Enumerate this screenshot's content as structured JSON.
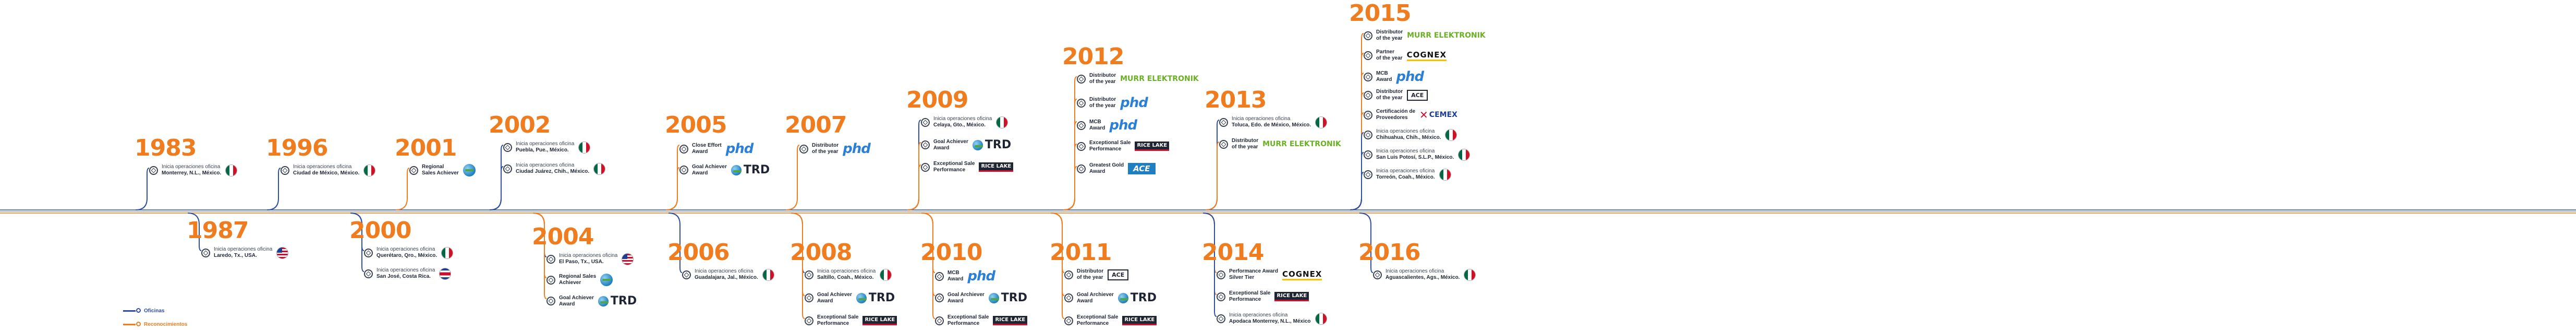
{
  "colors": {
    "orange": "#ef7d1f",
    "blue": "#2d4ea1",
    "navy": "#3b4250"
  },
  "legend": {
    "oficinas": "Oficinas",
    "reconocimientos": "Reconocimientos"
  },
  "groups": [
    {
      "year": "1983",
      "events": [
        {
          "l1": "Inicia operaciones oficina",
          "l2": "Monterrey, N.L., México.",
          "logo": "flag-mx"
        }
      ]
    },
    {
      "year": "1987",
      "events": [
        {
          "l1": "Inicia operaciones oficina",
          "l2": "Laredo, Tx., USA.",
          "logo": "flag-us"
        }
      ]
    },
    {
      "year": "1996",
      "events": [
        {
          "l1": "Inicia operaciones oficina",
          "l2": "Ciudad de México, México.",
          "logo": "flag-mx"
        }
      ]
    },
    {
      "year": "2000",
      "events": [
        {
          "l1": "Inicia operaciones oficina",
          "l2": "Querétaro, Qro., México.",
          "logo": "flag-mx"
        },
        {
          "l1": "Inicia operaciones oficina",
          "l2": "San José, Costa Rica.",
          "logo": "flag-cr"
        }
      ]
    },
    {
      "year": "2001",
      "events": [
        {
          "l1": "Regional",
          "l2": "Sales Achiever",
          "logo": "globe"
        }
      ]
    },
    {
      "year": "2002",
      "events": [
        {
          "l1": "Inicia operaciones oficina",
          "l2": "Puebla, Pue., México.",
          "logo": "flag-mx"
        },
        {
          "l1": "Inicia operaciones oficina",
          "l2": "Ciudad Juárez, Chih., México.",
          "logo": "flag-mx"
        }
      ]
    },
    {
      "year": "2004",
      "events": [
        {
          "l1": "Inicia operaciones oficina",
          "l2": "El Paso, Tx., USA.",
          "logo": "flag-us"
        },
        {
          "l1": "Regional Sales",
          "l2": "Achiever",
          "logo": "globe"
        },
        {
          "l1": "Goal Achiever",
          "l2": "Award",
          "logo": "trd"
        }
      ]
    },
    {
      "year": "2005",
      "events": [
        {
          "l1": "Close Effort",
          "l2": "Award",
          "logo": "phd"
        },
        {
          "l1": "Goal Achiever",
          "l2": "Award",
          "logo": "trd"
        }
      ]
    },
    {
      "year": "2006",
      "events": [
        {
          "l1": "Inicia operaciones oficina",
          "l2": "Guadalajara, Jal., México.",
          "logo": "flag-mx"
        }
      ]
    },
    {
      "year": "2007",
      "events": [
        {
          "l1": "Distributor",
          "l2": "of the year",
          "logo": "phd"
        }
      ]
    },
    {
      "year": "2008",
      "events": [
        {
          "l1": "Inicia operaciones oficina",
          "l2": "Saltillo, Coah., México.",
          "logo": "flag-mx"
        },
        {
          "l1": "Goal Achiever",
          "l2": "Award",
          "logo": "trd"
        },
        {
          "l1": "Exceptional Sale",
          "l2": "Performance",
          "logo": "rl"
        }
      ]
    },
    {
      "year": "2009",
      "events": [
        {
          "l1": "Inicia operaciones oficina",
          "l2": "Celaya, Gto., México.",
          "logo": "flag-mx"
        },
        {
          "l1": "Goal Achiever",
          "l2": "Award",
          "logo": "trd"
        },
        {
          "l1": "Exceptional Sale",
          "l2": "Performance",
          "logo": "rl"
        }
      ]
    },
    {
      "year": "2010",
      "events": [
        {
          "l1": "MCB",
          "l2": "Award",
          "logo": "phd"
        },
        {
          "l1": "Goal Archiever",
          "l2": "Award",
          "logo": "trd"
        },
        {
          "l1": "Exceptional Sale",
          "l2": "Performance",
          "logo": "rl"
        }
      ]
    },
    {
      "year": "2011",
      "events": [
        {
          "l1": "Distributor",
          "l2": "of the year",
          "logo": "ace2"
        },
        {
          "l1": "Goal Archiever",
          "l2": "Award",
          "logo": "trd"
        },
        {
          "l1": "Exceptional Sale",
          "l2": "Performance",
          "logo": "rl"
        }
      ]
    },
    {
      "year": "2012",
      "events": [
        {
          "l1": "Distributor",
          "l2": "of the year",
          "logo": "murr"
        },
        {
          "l1": "Distributor",
          "l2": "of the year",
          "logo": "phd"
        },
        {
          "l1": "MCB",
          "l2": "Award",
          "logo": "phd"
        },
        {
          "l1": "Exceptional Sale",
          "l2": "Performance",
          "logo": "rl"
        },
        {
          "l1": "Greatest Gold",
          "l2": "Award",
          "logo": "ace"
        }
      ]
    },
    {
      "year": "2013",
      "events": [
        {
          "l1": "Inicia operaciones oficina",
          "l2": "Toluca, Edo. de México, México.",
          "logo": "flag-mx"
        },
        {
          "l1": "Distributor",
          "l2": "of the year",
          "logo": "murr"
        }
      ]
    },
    {
      "year": "2014",
      "events": [
        {
          "l1": "Performance Award",
          "l2": "Silver Tier",
          "logo": "cognex"
        },
        {
          "l1": "Exceptional Sale",
          "l2": "Performance",
          "logo": "rl"
        },
        {
          "l1": "Inicia operaciones oficina",
          "l2": "Apodaca Monterrey, N.L., México",
          "logo": "flag-mx"
        }
      ]
    },
    {
      "year": "2015",
      "events": [
        {
          "l1": "Distributor",
          "l2": "of the year",
          "logo": "murr"
        },
        {
          "l1": "Partner",
          "l2": "of the year",
          "logo": "cognex"
        },
        {
          "l1": "MCB",
          "l2": "Award",
          "logo": "phd"
        },
        {
          "l1": "Distributor",
          "l2": "of the year",
          "logo": "ace2"
        },
        {
          "l1": "Certificación de",
          "l2": "Proveedores",
          "logo": "cemex"
        },
        {
          "l1": "Inicia operaciones oficina",
          "l2": "Chihuahua, Chih., México.",
          "logo": "flag-mx"
        },
        {
          "l1": "Inicia operaciones oficina",
          "l2": "San Luis Potosí, S.L.P., México.",
          "logo": "flag-mx"
        },
        {
          "l1": "Inicia operaciones oficina",
          "l2": "Torreón, Coah., México.",
          "logo": "flag-mx"
        }
      ]
    },
    {
      "year": "2016",
      "events": [
        {
          "l1": "Inicia operaciones oficina",
          "l2": "Aguascalientes, Ags., México.",
          "logo": "flag-mx"
        }
      ]
    }
  ],
  "logos": {
    "phd": "phd",
    "trd": "TRD",
    "rl": "RICE LAKE",
    "murr": "MURR ELEKTRONIK",
    "cognex": "COGNEX",
    "ace": "ACE",
    "ace2": "ACE",
    "cemex": "CEMEX"
  }
}
